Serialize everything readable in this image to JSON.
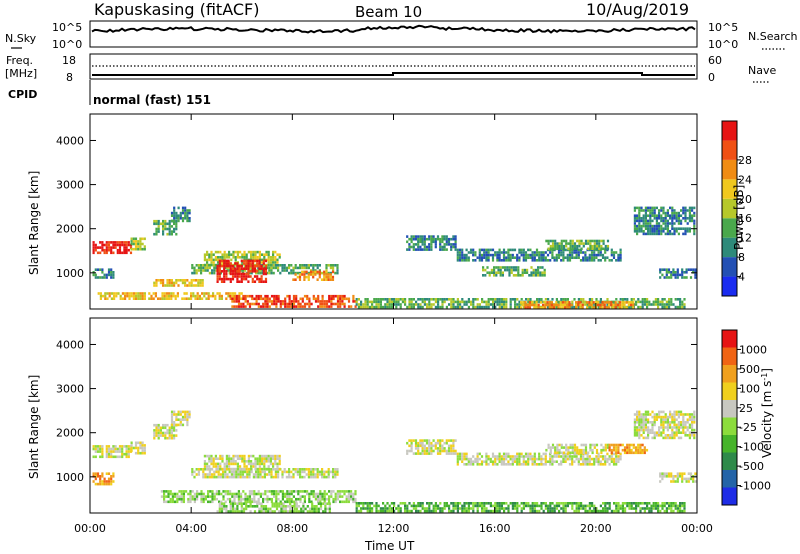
{
  "header": {
    "station": "Kapuskasing (fitACF)",
    "beam": "Beam 10",
    "date": "10/Aug/2019"
  },
  "nsky_panel": {
    "left_label": "N.Sky",
    "right_label": "N.Search",
    "left_ticks": [
      "10^5",
      "10^0"
    ],
    "right_ticks": [
      "10^5",
      "10^0"
    ]
  },
  "freq_panel": {
    "left_label_1": "Freq.",
    "left_label_2": "[MHz]",
    "right_label": "Nave",
    "left_ticks": [
      "18",
      "8"
    ],
    "right_ticks": [
      "60",
      "0"
    ],
    "cpid_label": "CPID",
    "cpid_text": "normal (fast) 151"
  },
  "chart_data": [
    {
      "type": "heatmap",
      "name": "power",
      "ylabel": "Slant Range [km]",
      "xlabel": "Time UT",
      "x_ticks": [
        "00:00",
        "04:00",
        "08:00",
        "12:00",
        "16:00",
        "20:00",
        "00:00"
      ],
      "y_ticks": [
        1000,
        2000,
        3000,
        4000
      ],
      "ylim": [
        180,
        4600
      ],
      "xlim_hours": [
        0,
        24
      ],
      "colorbar": {
        "label": "Power [dB]",
        "ticks": [
          "4",
          "8",
          "12",
          "16",
          "20",
          "24",
          "28"
        ],
        "colors": [
          "#1a2cf0",
          "#2350b4",
          "#2e8a7a",
          "#4aa84c",
          "#b6c82a",
          "#f0c81e",
          "#f08c14",
          "#f05014",
          "#e61414"
        ]
      },
      "regions": [
        {
          "t0": 0.1,
          "t1": 1.6,
          "r0": 1450,
          "r1": 1720,
          "level": 8
        },
        {
          "t0": 1.6,
          "t1": 2.2,
          "r0": 1550,
          "r1": 1800,
          "level": 4
        },
        {
          "t0": 0.1,
          "t1": 0.9,
          "r0": 900,
          "r1": 1100,
          "level": 2
        },
        {
          "t0": 2.5,
          "t1": 3.4,
          "r0": 1900,
          "r1": 2200,
          "level": 3
        },
        {
          "t0": 3.2,
          "t1": 3.9,
          "r0": 2200,
          "r1": 2500,
          "level": 2
        },
        {
          "t0": 4.0,
          "t1": 9.8,
          "r0": 1000,
          "r1": 1200,
          "level": 3
        },
        {
          "t0": 4.5,
          "t1": 7.5,
          "r0": 1150,
          "r1": 1500,
          "level": 4
        },
        {
          "t0": 5.0,
          "t1": 7.0,
          "r0": 800,
          "r1": 1300,
          "level": 8
        },
        {
          "t0": 2.5,
          "t1": 4.5,
          "r0": 730,
          "r1": 860,
          "level": 5
        },
        {
          "t0": 8.0,
          "t1": 9.6,
          "r0": 850,
          "r1": 1050,
          "level": 6
        },
        {
          "t0": 0.3,
          "t1": 6.0,
          "r0": 420,
          "r1": 560,
          "level": 5
        },
        {
          "t0": 5.5,
          "t1": 10.5,
          "r0": 250,
          "r1": 500,
          "level": 7
        },
        {
          "t0": 10.5,
          "t1": 23.5,
          "r0": 220,
          "r1": 430,
          "level": 3
        },
        {
          "t0": 17.0,
          "t1": 21.5,
          "r0": 220,
          "r1": 360,
          "level": 6
        },
        {
          "t0": 12.5,
          "t1": 14.5,
          "r0": 1550,
          "r1": 1850,
          "level": 2
        },
        {
          "t0": 14.5,
          "t1": 21.0,
          "r0": 1300,
          "r1": 1550,
          "level": 2
        },
        {
          "t0": 18.0,
          "t1": 20.5,
          "r0": 1550,
          "r1": 1750,
          "level": 3
        },
        {
          "t0": 15.5,
          "t1": 18.0,
          "r0": 950,
          "r1": 1150,
          "level": 3
        },
        {
          "t0": 21.5,
          "t1": 23.9,
          "r0": 1900,
          "r1": 2500,
          "level": 2
        },
        {
          "t0": 22.5,
          "t1": 23.9,
          "r0": 900,
          "r1": 1100,
          "level": 2
        }
      ]
    },
    {
      "type": "heatmap",
      "name": "velocity",
      "ylabel": "Slant Range [km]",
      "xlabel": "Time UT",
      "x_ticks": [
        "00:00",
        "04:00",
        "08:00",
        "12:00",
        "16:00",
        "20:00",
        "00:00"
      ],
      "y_ticks": [
        1000,
        2000,
        3000,
        4000
      ],
      "ylim": [
        180,
        4600
      ],
      "xlim_hours": [
        0,
        24
      ],
      "colorbar": {
        "label": "Velocity [m s",
        "label_sup": "-1",
        "label_end": "]",
        "ticks": [
          "1000",
          "500",
          "100",
          "25",
          "-25",
          "-100",
          "-500",
          "-1000"
        ],
        "colors": [
          "#1e2ce6",
          "#2364a8",
          "#2e8a4a",
          "#46b42a",
          "#8cdc3c",
          "#c8c8c0",
          "#f0d01e",
          "#f0a01e",
          "#f06414",
          "#e61414"
        ]
      },
      "regions": [
        {
          "t0": 0.1,
          "t1": 1.6,
          "r0": 1450,
          "r1": 1720,
          "level": 5
        },
        {
          "t0": 1.6,
          "t1": 2.2,
          "r0": 1550,
          "r1": 1800,
          "level": 5
        },
        {
          "t0": 2.5,
          "t1": 3.4,
          "r0": 1900,
          "r1": 2200,
          "level": 5
        },
        {
          "t0": 3.2,
          "t1": 3.9,
          "r0": 2200,
          "r1": 2500,
          "level": 5
        },
        {
          "t0": 4.0,
          "t1": 9.8,
          "r0": 1000,
          "r1": 1200,
          "level": 5
        },
        {
          "t0": 4.5,
          "t1": 7.5,
          "r0": 1150,
          "r1": 1500,
          "level": 5
        },
        {
          "t0": 0.1,
          "t1": 0.9,
          "r0": 850,
          "r1": 1100,
          "level": 7
        },
        {
          "t0": 2.8,
          "t1": 10.5,
          "r0": 420,
          "r1": 700,
          "level": 4
        },
        {
          "t0": 10.5,
          "t1": 23.5,
          "r0": 220,
          "r1": 430,
          "level": 3
        },
        {
          "t0": 5.0,
          "t1": 9.5,
          "r0": 230,
          "r1": 420,
          "level": 4
        },
        {
          "t0": 12.5,
          "t1": 14.5,
          "r0": 1550,
          "r1": 1850,
          "level": 5
        },
        {
          "t0": 14.5,
          "t1": 21.0,
          "r0": 1300,
          "r1": 1550,
          "level": 5
        },
        {
          "t0": 18.0,
          "t1": 20.5,
          "r0": 1550,
          "r1": 1750,
          "level": 5
        },
        {
          "t0": 21.5,
          "t1": 23.9,
          "r0": 1900,
          "r1": 2500,
          "level": 5
        },
        {
          "t0": 20.5,
          "t1": 22.0,
          "r0": 1550,
          "r1": 1750,
          "level": 7
        },
        {
          "t0": 22.5,
          "t1": 23.9,
          "r0": 900,
          "r1": 1100,
          "level": 5
        }
      ]
    }
  ]
}
